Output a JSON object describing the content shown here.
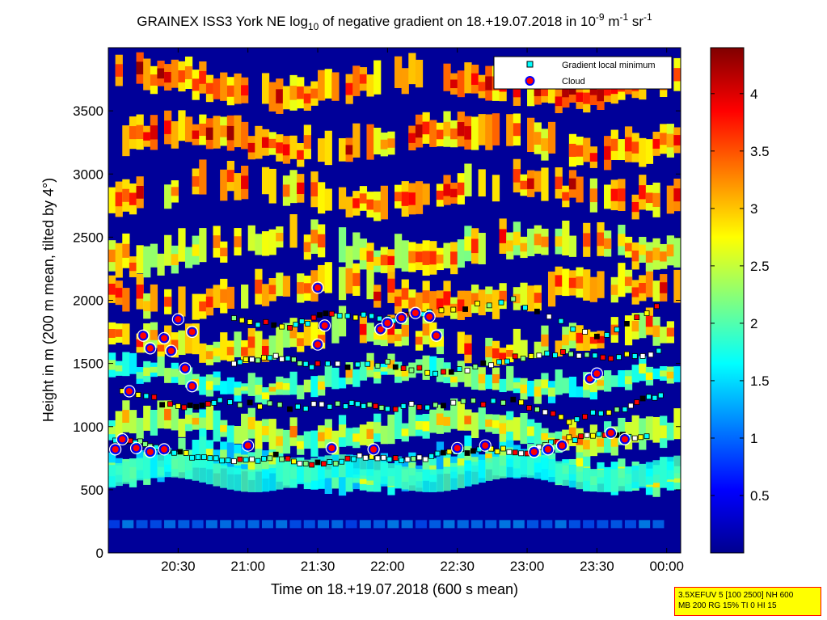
{
  "chart_data": {
    "type": "heatmap",
    "title": {
      "prefix": "GRAINEX ISS3 York NE log",
      "prefix_sub": "10",
      "middle": " of negative gradient on 18.+19.07.2018 in 10",
      "sup1": "-9",
      "m": " m",
      "sup2": "-1",
      "sr": " sr",
      "sup3": "-1"
    },
    "xlabel": "Time on 18.+19.07.2018 (600 s mean)",
    "ylabel": "Height in m (200 m mean, tilted by 4°)",
    "x_ticks": [
      "20:30",
      "21:00",
      "21:30",
      "22:00",
      "22:30",
      "23:00",
      "23:30",
      "00:00"
    ],
    "x_tick_hours": [
      20.5,
      21.0,
      21.5,
      22.0,
      22.5,
      23.0,
      23.5,
      24.0
    ],
    "xlim_hours": [
      20.0,
      24.1
    ],
    "y_ticks": [
      0,
      500,
      1000,
      1500,
      2000,
      2500,
      3000,
      3500
    ],
    "ylim": [
      0,
      4000
    ],
    "colorbar": {
      "ticks": [
        0.5,
        1,
        1.5,
        2,
        2.5,
        3,
        3.5,
        4
      ],
      "tick_labels": [
        "0.5",
        "1",
        "1.5",
        "2",
        "2.5",
        "3",
        "3.5",
        "4"
      ],
      "range": [
        0,
        4.4
      ],
      "colormap": "jet"
    },
    "legend": {
      "position": "top-right",
      "entries": [
        {
          "label": "Gradient local minimum",
          "marker": "square",
          "color": "#00ffff"
        },
        {
          "label": "Cloud",
          "marker": "circle",
          "color": "#ff0000",
          "edge": "#0000ff"
        }
      ]
    },
    "gradient_minimum_bands": [
      {
        "name": "low",
        "points": [
          [
            20.05,
            900
          ],
          [
            20.3,
            850
          ],
          [
            20.6,
            760
          ],
          [
            20.9,
            730
          ],
          [
            21.2,
            760
          ],
          [
            21.5,
            700
          ],
          [
            21.8,
            760
          ],
          [
            22.1,
            730
          ],
          [
            22.4,
            780
          ],
          [
            22.7,
            830
          ],
          [
            23.0,
            800
          ],
          [
            23.3,
            900
          ],
          [
            23.6,
            930
          ],
          [
            23.9,
            900
          ]
        ]
      },
      {
        "name": "mid",
        "points": [
          [
            20.1,
            1300
          ],
          [
            20.5,
            1150
          ],
          [
            20.8,
            1200
          ],
          [
            21.3,
            1150
          ],
          [
            21.7,
            1180
          ],
          [
            22.0,
            1150
          ],
          [
            22.4,
            1180
          ],
          [
            22.9,
            1200
          ],
          [
            23.3,
            1050
          ],
          [
            23.7,
            1150
          ],
          [
            24.0,
            1280
          ]
        ]
      },
      {
        "name": "upper",
        "points": [
          [
            20.9,
            1500
          ],
          [
            21.2,
            1550
          ],
          [
            21.5,
            1480
          ],
          [
            22.0,
            1500
          ],
          [
            22.4,
            1420
          ],
          [
            22.8,
            1520
          ],
          [
            23.2,
            1580
          ],
          [
            23.6,
            1550
          ],
          [
            24.0,
            1600
          ]
        ]
      },
      {
        "name": "top",
        "points": [
          [
            20.9,
            1850
          ],
          [
            21.3,
            1780
          ],
          [
            21.6,
            1900
          ],
          [
            22.0,
            1850
          ],
          [
            22.3,
            1900
          ],
          [
            22.9,
            2000
          ],
          [
            23.5,
            1700
          ],
          [
            24.0,
            2000
          ]
        ]
      }
    ],
    "cloud_points": [
      [
        20.05,
        820
      ],
      [
        20.1,
        900
      ],
      [
        20.2,
        830
      ],
      [
        20.3,
        800
      ],
      [
        20.4,
        820
      ],
      [
        20.15,
        1280
      ],
      [
        20.25,
        1720
      ],
      [
        20.3,
        1620
      ],
      [
        20.4,
        1700
      ],
      [
        20.45,
        1600
      ],
      [
        20.5,
        1850
      ],
      [
        20.6,
        1750
      ],
      [
        20.55,
        1460
      ],
      [
        20.6,
        1320
      ],
      [
        21.0,
        850
      ],
      [
        21.6,
        830
      ],
      [
        21.5,
        1650
      ],
      [
        21.55,
        1800
      ],
      [
        21.5,
        2100
      ],
      [
        21.9,
        820
      ],
      [
        21.95,
        1770
      ],
      [
        22.0,
        1820
      ],
      [
        22.1,
        1860
      ],
      [
        22.2,
        1900
      ],
      [
        22.3,
        1870
      ],
      [
        22.35,
        1720
      ],
      [
        22.5,
        830
      ],
      [
        22.7,
        850
      ],
      [
        23.05,
        800
      ],
      [
        23.15,
        820
      ],
      [
        23.25,
        850
      ],
      [
        23.45,
        1380
      ],
      [
        23.5,
        1420
      ],
      [
        23.6,
        950
      ],
      [
        23.7,
        900
      ]
    ],
    "colors": {
      "background": "#000099",
      "frame": "#000000"
    }
  },
  "info_box": {
    "line1": "3.5XEFUV 5 [100 2500] NH 600",
    "line2": "MB 200 RG 15% TI 0 HI 15"
  }
}
